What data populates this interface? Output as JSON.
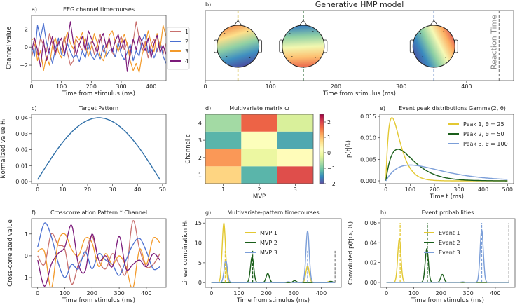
{
  "chart_data": [
    {
      "panel_label": "a)",
      "title": "EEG channel timecourses",
      "type": "line",
      "xlabel": "Time from stimulus (ms)",
      "ylabel": "Channel value",
      "xlim": [
        0,
        450
      ],
      "ylim": [
        -3.7,
        3.5
      ],
      "xticks": [
        "0",
        "100",
        "200",
        "300",
        "400"
      ],
      "yticks": [
        "−2",
        "0",
        "2"
      ],
      "legend": "right-outside",
      "x_start": 0,
      "x_step": 10,
      "series": [
        {
          "name": "1",
          "color": "#c8706e",
          "values": [
            -1.2,
            0.3,
            -0.8,
            1.0,
            0.2,
            -0.5,
            1.5,
            0.4,
            -0.9,
            0.6,
            -0.3,
            1.2,
            -0.6,
            -2.0,
            -1.5,
            0.8,
            0.2,
            -0.4,
            1.0,
            -0.2,
            0.6,
            -0.8,
            0.3,
            1.4,
            -0.5,
            0.2,
            0.8,
            -0.6,
            -1.1,
            0.4,
            1.2,
            -0.3,
            0.5,
            -1.0,
            0.7,
            2.8,
            1.0,
            -0.4,
            0.6,
            -1.2,
            0.3,
            0.9,
            -0.5,
            0.6,
            -0.8,
            0.4
          ]
        },
        {
          "name": "2",
          "color": "#4a6fd0",
          "values": [
            0.2,
            -1.0,
            2.4,
            1.0,
            2.6,
            0.5,
            -0.6,
            -1.8,
            -0.2,
            1.0,
            -0.8,
            -1.0,
            0.4,
            -0.5,
            -1.2,
            -0.8,
            -1.6,
            -0.4,
            -1.2,
            0.5,
            -0.9,
            -1.4,
            -0.6,
            -1.3,
            0.2,
            -1.0,
            -0.4,
            -0.2,
            -1.1,
            0.5,
            -0.8,
            -1.4,
            -0.6,
            0.3,
            -1.5,
            -0.4,
            -1.0,
            0.8,
            1.4,
            -0.6,
            -0.2,
            -1.2,
            -0.3,
            0.6,
            -1.0,
            -1.8
          ]
        },
        {
          "name": "3",
          "color": "#f39a2a",
          "values": [
            0.8,
            1.0,
            -1.5,
            -0.4,
            -2.6,
            -1.0,
            -2.0,
            0.2,
            1.0,
            -0.5,
            -1.2,
            0.6,
            1.6,
            0.4,
            -0.2,
            1.2,
            0.8,
            1.6,
            0.2,
            -1.0,
            0.0,
            1.5,
            0.4,
            -1.0,
            -1.5,
            -0.6,
            1.3,
            1.8,
            0.6,
            -0.5,
            0.5,
            1.4,
            0.3,
            -1.5,
            -2.6,
            -1.8,
            -2.8,
            -0.8,
            0.2,
            1.8,
            0.4,
            -0.5,
            1.5,
            -0.2,
            2.4,
            1.2
          ]
        },
        {
          "name": "4",
          "color": "#7b1a7a",
          "values": [
            -0.5,
            1.0,
            -0.3,
            -2.2,
            0.8,
            -1.5,
            -0.2,
            1.2,
            -0.6,
            0.4,
            1.0,
            -0.8,
            0.6,
            2.8,
            0.5,
            -0.8,
            0.3,
            1.2,
            -0.4,
            1.8,
            1.0,
            0.2,
            -0.6,
            0.8,
            1.5,
            0.0,
            1.0,
            -0.5,
            0.7,
            1.4,
            -0.2,
            0.8,
            -2.7,
            -0.6,
            0.9,
            -0.3,
            1.3,
            0.5,
            -0.4,
            1.0,
            -1.2,
            0.4,
            1.3,
            -0.6,
            0.2,
            -0.8
          ]
        }
      ]
    },
    {
      "panel_label": "b)",
      "title": "Generative HMP model",
      "type": "timeline",
      "xlabel": "Time from stimulus (ms)",
      "xlim": [
        0,
        472
      ],
      "ylim": [
        0,
        1
      ],
      "xticks": [
        "0",
        "100",
        "200",
        "300",
        "400"
      ],
      "events": [
        {
          "t": 50,
          "color": "#d4b93a",
          "topomap_colors": [
            "#f08a4b",
            "#fde08b",
            "#8fd0a4",
            "#3f8fc0",
            "#4a4aa0"
          ]
        },
        {
          "t": 150,
          "color": "#2f6b3a",
          "topomap_colors": [
            "#3a7fbf",
            "#8fd0a4",
            "#f2f8b0",
            "#fdbf70",
            "#e8604a"
          ]
        },
        {
          "t": 350,
          "color": "#6f93c8",
          "topomap_colors": [
            "#4a4fa0",
            "#3a8abf",
            "#8fd0a4",
            "#f6f9b5",
            "#fdae61",
            "#d53e4f"
          ]
        }
      ],
      "reaction_time": {
        "t": 450,
        "label": "Reaction Time",
        "color": "#888888"
      }
    },
    {
      "panel_label": "c)",
      "title": "Target Pattern",
      "type": "line",
      "xlabel": "",
      "ylabel": "Normalized value Hₗ",
      "xlim": [
        -2.45,
        51.45
      ],
      "ylim": [
        -0.0013,
        0.0422
      ],
      "xticks": [
        "0",
        "10",
        "20",
        "30",
        "40",
        "50"
      ],
      "yticks": [
        "0.00",
        "0.01",
        "0.02",
        "0.03",
        "0.04"
      ],
      "series": [
        {
          "color": "#2f6fa8",
          "x": [
            0,
            2,
            4,
            6,
            8,
            10,
            12,
            14,
            16,
            18,
            20,
            22,
            24,
            25,
            27,
            29,
            31,
            33,
            35,
            37,
            39,
            41,
            43,
            45,
            47,
            49
          ],
          "y": [
            0.0013,
            0.0063,
            0.0112,
            0.0159,
            0.0204,
            0.0245,
            0.0283,
            0.0316,
            0.0344,
            0.0367,
            0.0384,
            0.0395,
            0.04,
            0.04,
            0.0395,
            0.0384,
            0.0367,
            0.0344,
            0.0316,
            0.0283,
            0.0245,
            0.0204,
            0.0159,
            0.0112,
            0.0063,
            0.0013
          ]
        }
      ]
    },
    {
      "panel_label": "d)",
      "title": "Multivariate matrix ω",
      "type": "heatmap",
      "xlabel": "MVP",
      "ylabel": "Channel c",
      "xlim": [
        0.5,
        3.5
      ],
      "ylim": [
        0.5,
        4.5
      ],
      "xticks": [
        "1",
        "2",
        "3"
      ],
      "yticks": [
        "1",
        "2",
        "3",
        "4"
      ],
      "values_by_channel": [
        [
          0.8,
          -1.2,
          1.9
        ],
        [
          1.3,
          -0.1,
          0.3
        ],
        [
          -1.2,
          0.2,
          -1.3
        ],
        [
          -0.7,
          1.7,
          -0.3
        ]
      ],
      "colormap": "Spectral_r",
      "colormap_stops": [
        "#5e4fa2",
        "#3288bd",
        "#66c2a5",
        "#abdda4",
        "#e6f598",
        "#ffffbf",
        "#fee08b",
        "#fdae61",
        "#f46d43",
        "#d53e4f",
        "#9e0142"
      ],
      "clim": [
        -2,
        2.5
      ],
      "colorbar_ticks": [
        "−2",
        "−1",
        "0",
        "1",
        "2"
      ]
    },
    {
      "panel_label": "e)",
      "title": "Event peak distributions Gamma(2, θ)",
      "type": "line",
      "xlabel": "Time t (ms)",
      "ylabel": "p(t|θᵢ)",
      "xlim": [
        -25,
        525
      ],
      "ylim": [
        -0.00065,
        0.0155
      ],
      "xticks": [
        "0",
        "100",
        "200",
        "300",
        "400",
        "500"
      ],
      "yticks": [
        "0.000",
        "0.005",
        "0.010",
        "0.015"
      ],
      "legend": "top-right",
      "distribution_shape": 2,
      "series": [
        {
          "name": "Peak 1, θ = 25",
          "theta": 25,
          "color": "#e3c832"
        },
        {
          "name": "Peak 2, θ = 50",
          "theta": 50,
          "color": "#1a5e1a"
        },
        {
          "name": "Peak 3, θ = 100",
          "theta": 100,
          "color": "#7b9ed8"
        }
      ]
    },
    {
      "panel_label": "f)",
      "title": "Crosscorrelation Pattern * Channel",
      "type": "line",
      "xlabel": "Time from stimulus (ms)",
      "ylabel": "Cross-correlated value",
      "xlim": [
        -22.5,
        472.5
      ],
      "ylim": [
        -1.45,
        1.7
      ],
      "xticks": [
        "0",
        "100",
        "200",
        "300",
        "400"
      ],
      "yticks": [
        "−1",
        "0",
        "1"
      ],
      "x_start": 0,
      "x_step": 25,
      "series": [
        {
          "color": "#c8706e",
          "values": [
            0.0,
            -0.4,
            1.0,
            0.5,
            0.3,
            -1.3,
            -0.4,
            0.1,
            0.9,
            -0.2,
            -0.6,
            0.1,
            -0.4,
            -0.8,
            1.6,
            0.3,
            -0.5,
            -0.4,
            0.1
          ]
        },
        {
          "color": "#4a6fd0",
          "values": [
            0.4,
            1.5,
            0.9,
            -0.3,
            -1.0,
            -0.4,
            -0.6,
            0.2,
            -0.6,
            0.1,
            -0.2,
            -0.4,
            -0.9,
            -0.2,
            0.5,
            0.8,
            0.2,
            -0.6,
            -0.5
          ]
        },
        {
          "color": "#f39a2a",
          "values": [
            0.2,
            0.2,
            -1.5,
            0.6,
            1.0,
            0.3,
            0.0,
            0.8,
            0.6,
            -0.5,
            0.1,
            -0.4,
            0.0,
            -0.5,
            -1.5,
            0.3,
            -0.4,
            0.8,
            0.6
          ]
        },
        {
          "color": "#7b1a7a",
          "values": [
            -0.2,
            -1.4,
            -0.4,
            0.1,
            0.4,
            1.4,
            -0.4,
            -0.7,
            1.0,
            -0.2,
            0.0,
            -0.5,
            0.9,
            -0.6,
            -0.4,
            -0.2,
            -0.5,
            0.1,
            -0.2
          ]
        }
      ]
    },
    {
      "panel_label": "g)",
      "title": "Multivariate-pattern timecourses",
      "type": "line",
      "xlabel": "Time from stimulus (ms)",
      "ylabel": "Linear combination Hₜ",
      "xlim": [
        -22.5,
        472.5
      ],
      "ylim": [
        -1.2,
        16.1
      ],
      "xticks": [
        "0",
        "100",
        "200",
        "300",
        "400"
      ],
      "yticks": [
        "0",
        "5",
        "10",
        "15"
      ],
      "legend": "upper-center",
      "series": [
        {
          "name": "MVP 1",
          "color": "#e3c832",
          "peaks": [
            {
              "t": 45,
              "height": 15
            },
            {
              "t": 350,
              "height": 4.2
            },
            {
              "t": 430,
              "height": 0.3
            }
          ]
        },
        {
          "name": "MVP 2",
          "color": "#1a5e1a",
          "peaks": [
            {
              "t": 148,
              "height": 6.5
            },
            {
              "t": 205,
              "height": 2.3
            },
            {
              "t": 303,
              "height": 0.5
            },
            {
              "t": 435,
              "height": 0.3
            }
          ]
        },
        {
          "name": "MVP 3",
          "color": "#7b9ed8",
          "peaks": [
            {
              "t": 52,
              "height": 5.6
            },
            {
              "t": 350,
              "height": 13
            },
            {
              "t": 280,
              "height": 0.2
            }
          ]
        }
      ],
      "event_lines": [
        {
          "t": 50,
          "top": 8,
          "color": "#e3c832"
        },
        {
          "t": 150,
          "top": 8,
          "color": "#1a5e1a"
        },
        {
          "t": 350,
          "top": 8,
          "color": "#7b9ed8"
        },
        {
          "t": 450,
          "top": 8,
          "color": "#888888"
        }
      ]
    },
    {
      "panel_label": "h)",
      "title": "Event probabilities",
      "type": "line",
      "xlabel": "Time from stimulus (ms)",
      "ylabel": "Convoluted p(t|ωᵢ, θᵢ)",
      "xlim": [
        -22.5,
        472.5
      ],
      "ylim": [
        -0.005,
        0.0642
      ],
      "xticks": [
        "0",
        "100",
        "200",
        "300",
        "400"
      ],
      "yticks": [
        "0.00",
        "0.02",
        "0.04",
        "0.06"
      ],
      "legend": "upper-center",
      "series": [
        {
          "name": "Event 1",
          "color": "#e3c832",
          "peaks": [
            {
              "t": 47,
              "height": 0.044
            }
          ]
        },
        {
          "name": "Event 2",
          "color": "#1a5e1a",
          "peaks": [
            {
              "t": 148,
              "height": 0.034
            },
            {
              "t": 205,
              "height": 0.008
            }
          ]
        },
        {
          "name": "Event 3",
          "color": "#7b9ed8",
          "peaks": [
            {
              "t": 350,
              "height": 0.053
            },
            {
              "t": 280,
              "height": 0.0005
            }
          ]
        }
      ],
      "event_lines": [
        {
          "t": 50,
          "top": 0.06,
          "color": "#e3c832"
        },
        {
          "t": 150,
          "top": 0.06,
          "color": "#1a5e1a"
        },
        {
          "t": 350,
          "top": 0.06,
          "color": "#7b9ed8"
        },
        {
          "t": 450,
          "top": 0.06,
          "color": "#888888"
        }
      ]
    }
  ]
}
